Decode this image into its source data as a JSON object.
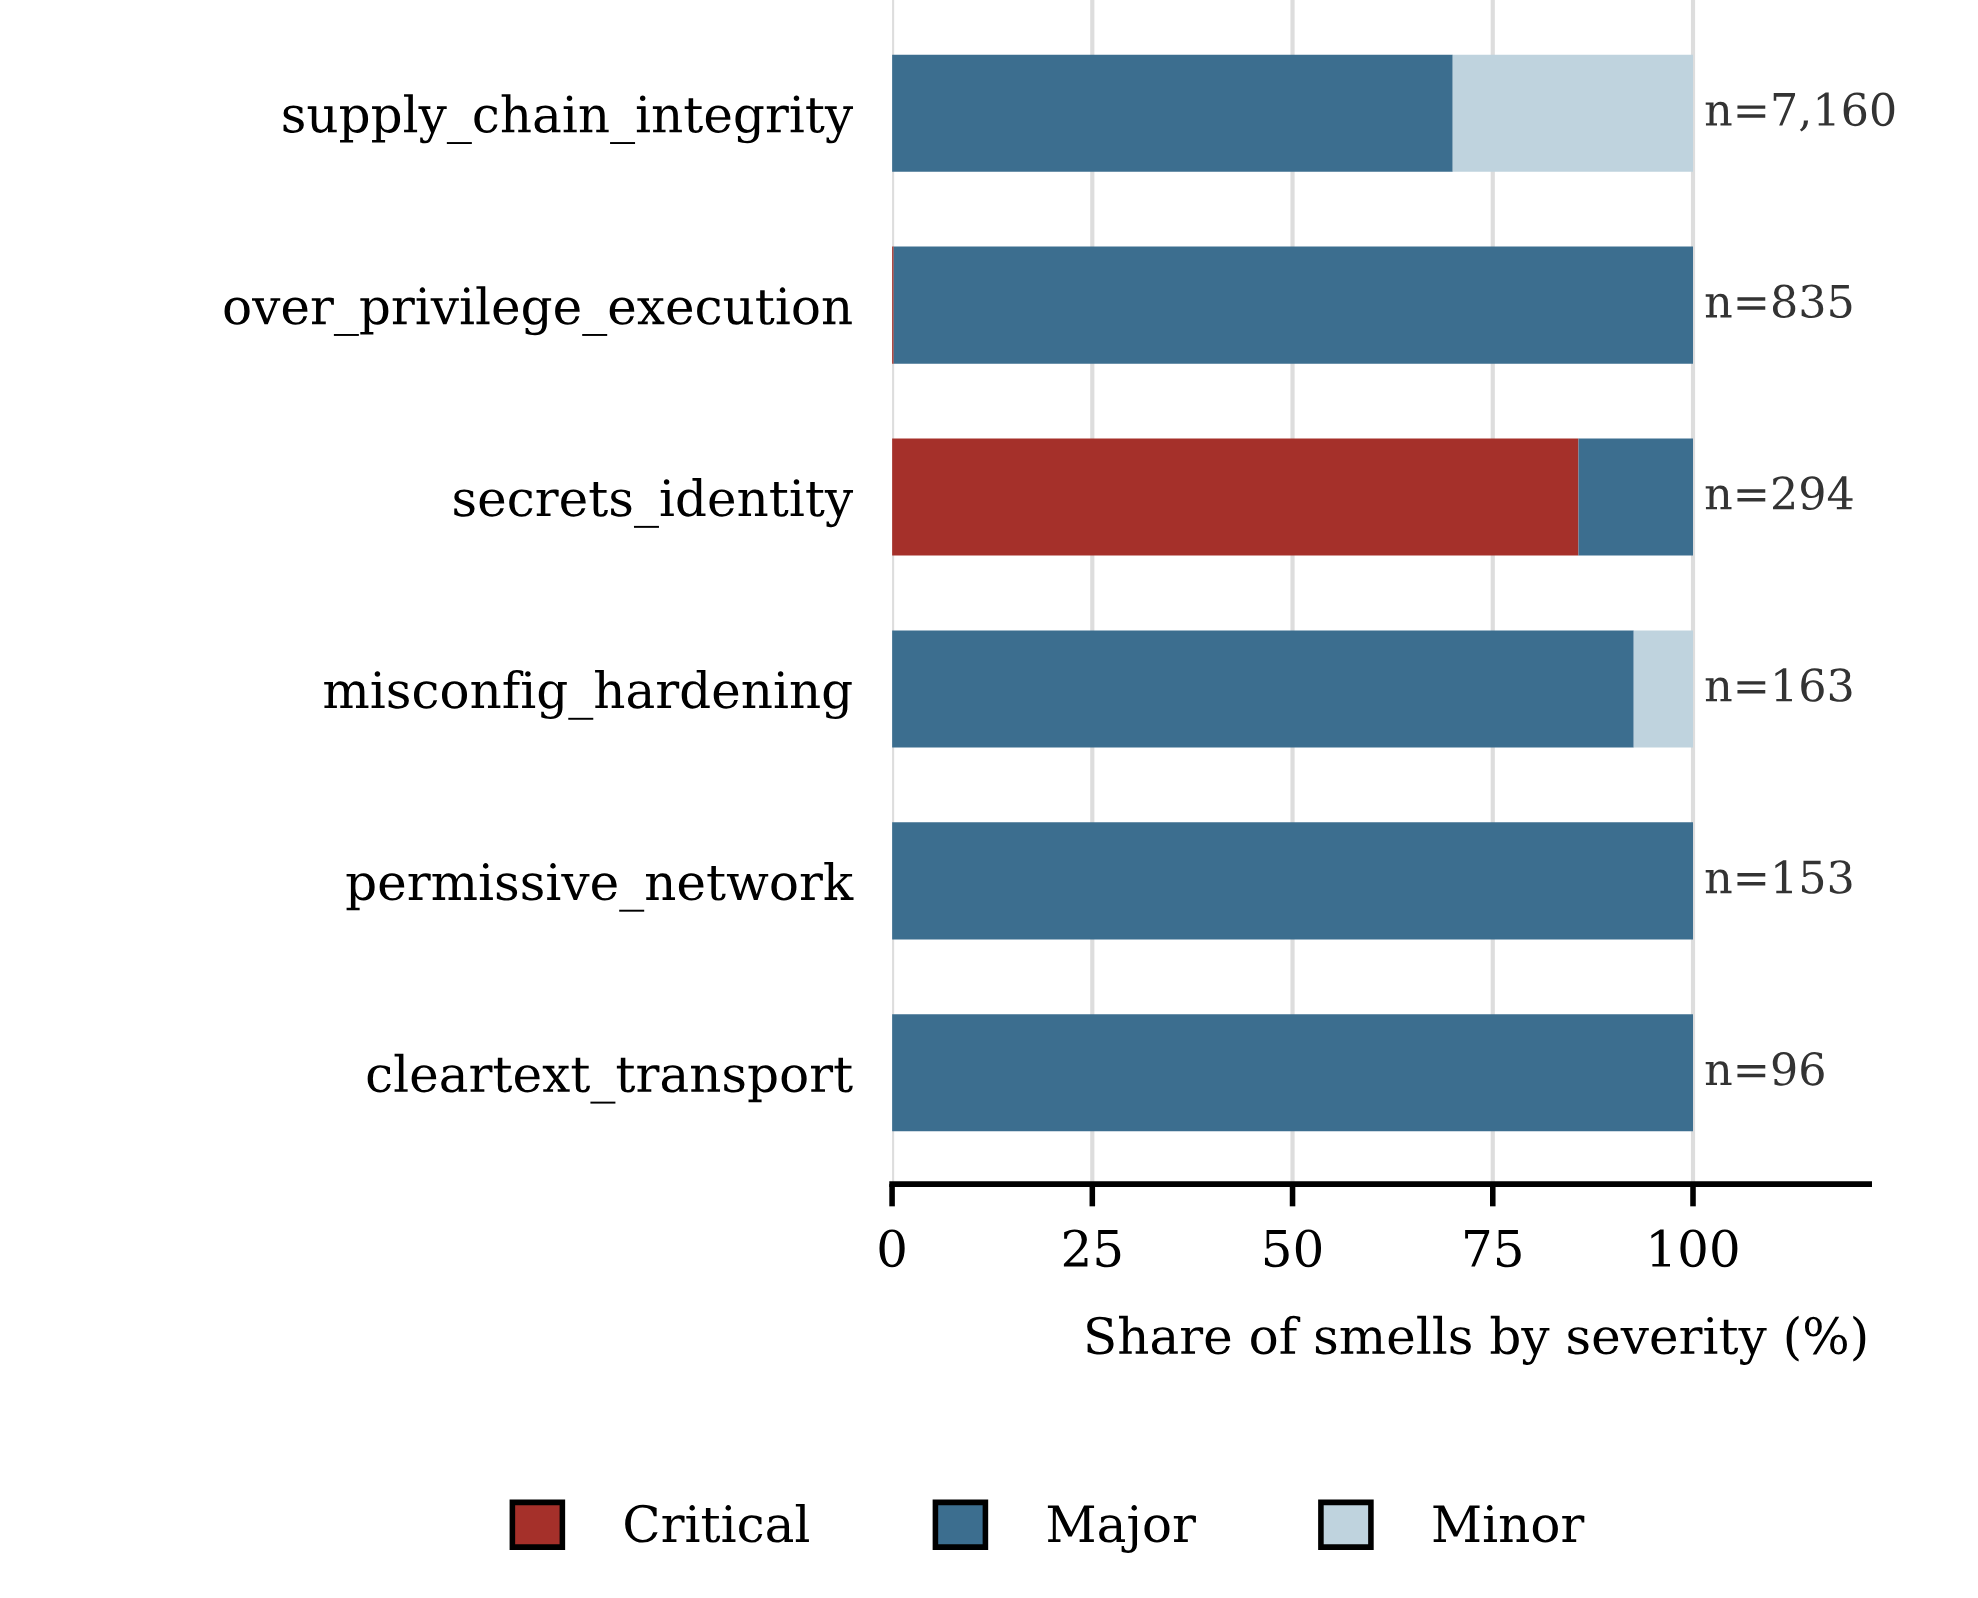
{
  "chart_data": {
    "type": "bar",
    "orientation": "horizontal",
    "stacked": true,
    "categories": [
      "supply_chain_integrity",
      "over_privilege_execution",
      "secrets_identity",
      "misconfig_hardening",
      "permissive_network",
      "cleartext_transport"
    ],
    "series": [
      {
        "name": "Critical",
        "color": "#a5302a",
        "values": [
          0,
          0.2,
          85.7,
          0,
          0,
          0
        ]
      },
      {
        "name": "Major",
        "color": "#3c6e8f",
        "values": [
          70,
          99.8,
          14.3,
          92.6,
          100,
          100
        ]
      },
      {
        "name": "Minor",
        "color": "#bfd3de",
        "values": [
          30,
          0,
          0,
          7.4,
          0,
          0
        ]
      }
    ],
    "xlabel": "Share of smells by severity (%)",
    "xlim": [
      0,
      122
    ],
    "xticks": [
      0,
      25,
      50,
      75,
      100
    ],
    "grid": "x",
    "legend": "bottom",
    "annotations": [
      "n=7,160",
      "n=835",
      "n=294",
      "n=163",
      "n=153",
      "n=96"
    ]
  }
}
